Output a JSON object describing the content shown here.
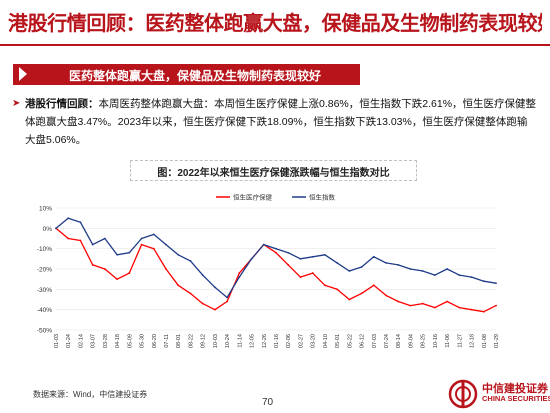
{
  "slide": {
    "title": "港股行情回顾：医药整体跑赢大盘，保健品及生物制药表现较好",
    "banner": "医药整体跑赢大盘，保健品及生物制药表现较好",
    "bullet": {
      "lead": "港股行情回顾：",
      "body": "本周医药整体跑赢大盘：本周恒生医疗保健上涨0.86%，恒生指数下跌2.61%，恒生医疗保健整体跑赢大盘3.47%。2023年以来，恒生医疗保健下跌18.09%，恒生指数下跌13.03%，恒生医疗保健整体跑输大盘5.06%。"
    },
    "source": "数据来源：Wind，中信建投证券",
    "page_number": "70"
  },
  "logo": {
    "cn": "中信建投证券",
    "en": "CHINA SECURITIES"
  },
  "colors": {
    "brand_red": "#b8141b",
    "series_red": "#ff0000",
    "series_blue": "#1f3c88"
  },
  "chart_data": {
    "type": "line",
    "title": "图：2022年以来恒生医疗保健涨跌幅与恒生指数对比",
    "ylim": [
      -50,
      10
    ],
    "yticks": [
      10,
      0,
      -10,
      -20,
      -30,
      -40,
      -50
    ],
    "ytick_labels": [
      "10%",
      "0%",
      "-10%",
      "-20%",
      "-30%",
      "-40%",
      "-50%"
    ],
    "x": [
      "2022-01-03",
      "2022-01-24",
      "2022-02-21",
      "2022-03-14",
      "2022-04-04",
      "2022-04-25",
      "2022-05-16",
      "2022-06-06",
      "2022-06-27",
      "2022-07-18",
      "2022-08-08",
      "2022-08-29",
      "2022-09-19",
      "2022-10-10",
      "2022-10-31",
      "2022-11-21",
      "2022-12-12",
      "2023-01-02",
      "2023-01-23",
      "2023-02-13",
      "2023-03-06",
      "2023-03-27",
      "2023-04-17",
      "2023-05-08",
      "2023-05-29",
      "2023-06-19",
      "2023-07-10",
      "2023-07-31",
      "2023-08-21",
      "2023-09-11",
      "2023-10-02",
      "2023-10-23",
      "2023-11-13",
      "2023-12-04",
      "2023-12-25",
      "2024-01-15",
      "2024-01-29"
    ],
    "xtick_labels": [
      "2022-01-03",
      "2022-01-24",
      "2022-02-14",
      "2022-03-07",
      "2022-03-28",
      "2022-04-18",
      "2022-05-09",
      "2022-05-30",
      "2022-06-20",
      "2022-07-11",
      "2022-08-01",
      "2022-08-22",
      "2022-09-12",
      "2022-10-03",
      "2022-10-24",
      "2022-11-14",
      "2022-12-05",
      "2022-12-26",
      "2023-01-16",
      "2023-02-06",
      "2023-02-27",
      "2023-03-20",
      "2023-04-10",
      "2023-05-01",
      "2023-05-22",
      "2023-06-12",
      "2023-07-03",
      "2023-07-24",
      "2023-08-14",
      "2023-09-04",
      "2023-09-25",
      "2023-10-16",
      "2023-11-06",
      "2023-11-27",
      "2023-12-18",
      "2024-01-08",
      "2024-01-29"
    ],
    "series": [
      {
        "name": "恒生医疗保健",
        "color": "#ff0000",
        "values": [
          0,
          -5,
          -6,
          -18,
          -20,
          -25,
          -22,
          -8,
          -10,
          -20,
          -28,
          -32,
          -37,
          -40,
          -36,
          -22,
          -15,
          -8,
          -12,
          -18,
          -24,
          -22,
          -28,
          -30,
          -35,
          -32,
          -28,
          -33,
          -36,
          -38,
          -37,
          -39,
          -36,
          -39,
          -40,
          -41,
          -38
        ]
      },
      {
        "name": "恒生指数",
        "color": "#1f3c88",
        "values": [
          0,
          5,
          3,
          -8,
          -5,
          -13,
          -12,
          -5,
          -3,
          -8,
          -13,
          -16,
          -23,
          -29,
          -34,
          -24,
          -15,
          -8,
          -10,
          -12,
          -15,
          -14,
          -13,
          -17,
          -21,
          -19,
          -14,
          -17,
          -18,
          -20,
          -21,
          -23,
          -20,
          -23,
          -24,
          -26,
          -27
        ]
      }
    ]
  }
}
